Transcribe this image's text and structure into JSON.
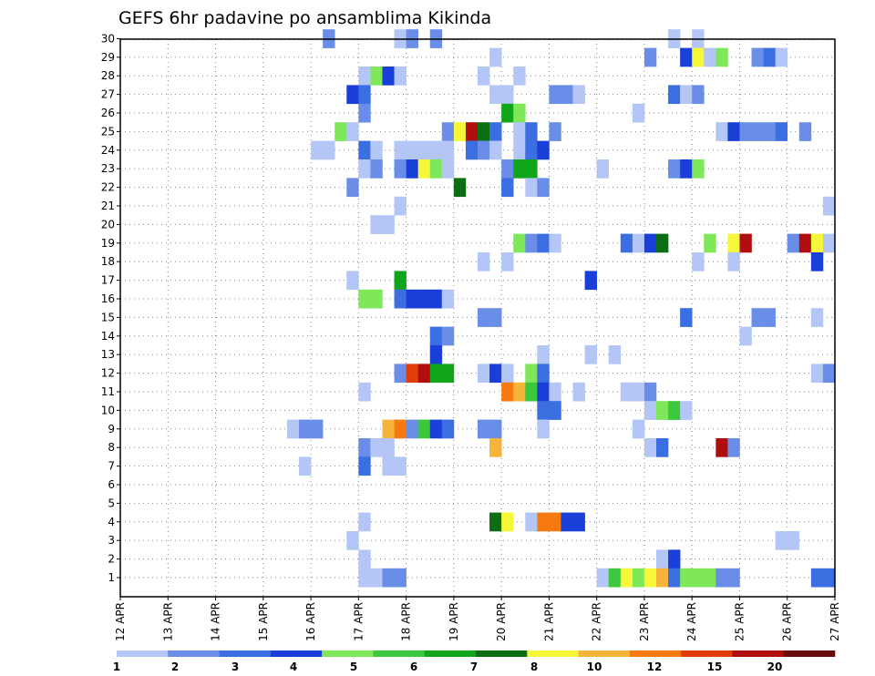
{
  "chart_data": {
    "type": "heatmap",
    "title": "GEFS 6hr padavine po ansamblima Kikinda",
    "x_labels": [
      "12 APR",
      "13 APR",
      "14 APR",
      "15 APR",
      "16 APR",
      "17 APR",
      "18 APR",
      "19 APR",
      "20 APR",
      "21 APR",
      "22 APR",
      "23 APR",
      "24 APR",
      "25 APR",
      "26 APR",
      "27 APR"
    ],
    "y_labels": [
      "1",
      "2",
      "3",
      "4",
      "5",
      "6",
      "7",
      "8",
      "9",
      "10",
      "11",
      "12",
      "13",
      "14",
      "15",
      "16",
      "17",
      "18",
      "19",
      "20",
      "21",
      "22",
      "23",
      "24",
      "25",
      "26",
      "27",
      "28",
      "29",
      "30"
    ],
    "steps_per_day": 4,
    "colorbar": {
      "labels": [
        "1",
        "2",
        "3",
        "4",
        "5",
        "6",
        "7",
        "8",
        "10",
        "12",
        "15",
        "20"
      ],
      "colors": [
        "#b3c6f5",
        "#6a8ee8",
        "#3b6ee0",
        "#1a3fd8",
        "#7fe85a",
        "#3cc83c",
        "#11a61a",
        "#0b6e12",
        "#f7f73a",
        "#f7b43a",
        "#f77a10",
        "#e03c0c",
        "#b00e0e",
        "#6a0a0a"
      ]
    },
    "cells": [
      [
        30,
        17,
        2
      ],
      [
        30,
        23,
        1
      ],
      [
        30,
        24,
        2
      ],
      [
        30,
        26,
        2
      ],
      [
        30,
        46,
        1
      ],
      [
        30,
        48,
        1
      ],
      [
        29,
        31,
        1
      ],
      [
        29,
        44,
        2
      ],
      [
        29,
        47,
        4
      ],
      [
        29,
        48,
        9
      ],
      [
        29,
        49,
        1
      ],
      [
        29,
        50,
        5
      ],
      [
        29,
        53,
        2
      ],
      [
        29,
        54,
        3
      ],
      [
        29,
        55,
        1
      ],
      [
        28,
        20,
        1
      ],
      [
        28,
        21,
        5
      ],
      [
        28,
        22,
        4
      ],
      [
        28,
        23,
        1
      ],
      [
        28,
        30,
        1
      ],
      [
        28,
        33,
        1
      ],
      [
        27,
        19,
        4
      ],
      [
        27,
        20,
        3
      ],
      [
        27,
        31,
        1
      ],
      [
        27,
        32,
        1
      ],
      [
        27,
        36,
        2
      ],
      [
        27,
        37,
        2
      ],
      [
        27,
        38,
        1
      ],
      [
        27,
        46,
        3
      ],
      [
        27,
        47,
        1
      ],
      [
        27,
        48,
        2
      ],
      [
        27,
        60,
        1
      ],
      [
        26,
        20,
        2
      ],
      [
        26,
        32,
        7
      ],
      [
        26,
        33,
        5
      ],
      [
        26,
        43,
        1
      ],
      [
        25,
        18,
        5
      ],
      [
        25,
        19,
        1
      ],
      [
        25,
        27,
        2
      ],
      [
        25,
        28,
        9
      ],
      [
        25,
        29,
        13
      ],
      [
        25,
        30,
        8
      ],
      [
        25,
        31,
        3
      ],
      [
        25,
        33,
        1
      ],
      [
        25,
        34,
        3
      ],
      [
        25,
        36,
        2
      ],
      [
        25,
        50,
        1
      ],
      [
        25,
        51,
        4
      ],
      [
        25,
        52,
        2
      ],
      [
        25,
        53,
        2
      ],
      [
        25,
        54,
        2
      ],
      [
        25,
        55,
        3
      ],
      [
        25,
        57,
        2
      ],
      [
        24,
        16,
        1
      ],
      [
        24,
        17,
        1
      ],
      [
        24,
        20,
        3
      ],
      [
        24,
        21,
        1
      ],
      [
        24,
        23,
        1
      ],
      [
        24,
        24,
        1
      ],
      [
        24,
        25,
        1
      ],
      [
        24,
        26,
        1
      ],
      [
        24,
        27,
        1
      ],
      [
        24,
        29,
        3
      ],
      [
        24,
        30,
        2
      ],
      [
        24,
        31,
        1
      ],
      [
        24,
        33,
        1
      ],
      [
        24,
        34,
        3
      ],
      [
        24,
        35,
        4
      ],
      [
        23,
        20,
        1
      ],
      [
        23,
        21,
        2
      ],
      [
        23,
        23,
        2
      ],
      [
        23,
        24,
        4
      ],
      [
        23,
        25,
        9
      ],
      [
        23,
        26,
        5
      ],
      [
        23,
        27,
        1
      ],
      [
        23,
        32,
        2
      ],
      [
        23,
        33,
        7
      ],
      [
        23,
        34,
        7
      ],
      [
        23,
        40,
        1
      ],
      [
        23,
        46,
        2
      ],
      [
        23,
        47,
        4
      ],
      [
        23,
        48,
        5
      ],
      [
        22,
        19,
        2
      ],
      [
        22,
        28,
        8
      ],
      [
        22,
        32,
        3
      ],
      [
        22,
        34,
        1
      ],
      [
        22,
        35,
        2
      ],
      [
        22,
        60,
        6
      ],
      [
        21,
        23,
        1
      ],
      [
        21,
        59,
        1
      ],
      [
        20,
        21,
        1
      ],
      [
        20,
        22,
        1
      ],
      [
        19,
        33,
        5
      ],
      [
        19,
        34,
        2
      ],
      [
        19,
        35,
        3
      ],
      [
        19,
        36,
        1
      ],
      [
        19,
        42,
        3
      ],
      [
        19,
        43,
        1
      ],
      [
        19,
        44,
        4
      ],
      [
        19,
        45,
        8
      ],
      [
        19,
        49,
        5
      ],
      [
        19,
        51,
        9
      ],
      [
        19,
        52,
        13
      ],
      [
        19,
        56,
        2
      ],
      [
        19,
        57,
        13
      ],
      [
        19,
        58,
        9
      ],
      [
        19,
        59,
        1
      ],
      [
        18,
        30,
        1
      ],
      [
        18,
        32,
        1
      ],
      [
        18,
        48,
        1
      ],
      [
        18,
        51,
        1
      ],
      [
        18,
        58,
        4
      ],
      [
        17,
        19,
        1
      ],
      [
        17,
        23,
        7
      ],
      [
        17,
        39,
        4
      ],
      [
        16,
        20,
        5
      ],
      [
        16,
        21,
        5
      ],
      [
        16,
        23,
        3
      ],
      [
        16,
        24,
        4
      ],
      [
        16,
        25,
        4
      ],
      [
        16,
        26,
        4
      ],
      [
        16,
        27,
        1
      ],
      [
        15,
        30,
        2
      ],
      [
        15,
        31,
        2
      ],
      [
        15,
        47,
        3
      ],
      [
        15,
        53,
        2
      ],
      [
        15,
        54,
        2
      ],
      [
        15,
        58,
        1
      ],
      [
        14,
        26,
        3
      ],
      [
        14,
        27,
        2
      ],
      [
        14,
        52,
        1
      ],
      [
        13,
        26,
        4
      ],
      [
        13,
        35,
        1
      ],
      [
        13,
        39,
        1
      ],
      [
        13,
        41,
        1
      ],
      [
        12,
        23,
        2
      ],
      [
        12,
        24,
        12
      ],
      [
        12,
        25,
        13
      ],
      [
        12,
        26,
        7
      ],
      [
        12,
        27,
        7
      ],
      [
        12,
        30,
        1
      ],
      [
        12,
        31,
        4
      ],
      [
        12,
        32,
        1
      ],
      [
        12,
        34,
        5
      ],
      [
        12,
        35,
        3
      ],
      [
        12,
        58,
        1
      ],
      [
        12,
        59,
        2
      ],
      [
        11,
        20,
        1
      ],
      [
        11,
        32,
        11
      ],
      [
        11,
        33,
        10
      ],
      [
        11,
        34,
        6
      ],
      [
        11,
        35,
        4
      ],
      [
        11,
        36,
        1
      ],
      [
        11,
        38,
        1
      ],
      [
        11,
        42,
        1
      ],
      [
        11,
        43,
        1
      ],
      [
        11,
        44,
        2
      ],
      [
        10,
        35,
        3
      ],
      [
        10,
        36,
        3
      ],
      [
        10,
        44,
        1
      ],
      [
        10,
        45,
        5
      ],
      [
        10,
        46,
        6
      ],
      [
        10,
        47,
        1
      ],
      [
        9,
        14,
        1
      ],
      [
        9,
        15,
        2
      ],
      [
        9,
        16,
        2
      ],
      [
        9,
        22,
        10
      ],
      [
        9,
        23,
        11
      ],
      [
        9,
        24,
        2
      ],
      [
        9,
        25,
        6
      ],
      [
        9,
        26,
        4
      ],
      [
        9,
        27,
        3
      ],
      [
        9,
        30,
        2
      ],
      [
        9,
        31,
        2
      ],
      [
        9,
        35,
        1
      ],
      [
        9,
        43,
        1
      ],
      [
        8,
        20,
        2
      ],
      [
        8,
        21,
        1
      ],
      [
        8,
        22,
        1
      ],
      [
        8,
        31,
        10
      ],
      [
        8,
        44,
        1
      ],
      [
        8,
        45,
        3
      ],
      [
        8,
        50,
        13
      ],
      [
        8,
        51,
        2
      ],
      [
        7,
        15,
        1
      ],
      [
        7,
        20,
        3
      ],
      [
        7,
        22,
        1
      ],
      [
        7,
        23,
        1
      ],
      [
        4,
        20,
        1
      ],
      [
        4,
        31,
        8
      ],
      [
        4,
        32,
        9
      ],
      [
        4,
        34,
        1
      ],
      [
        4,
        35,
        11
      ],
      [
        4,
        36,
        11
      ],
      [
        4,
        37,
        4
      ],
      [
        4,
        38,
        4
      ],
      [
        3,
        19,
        1
      ],
      [
        3,
        55,
        1
      ],
      [
        3,
        56,
        1
      ],
      [
        2,
        20,
        1
      ],
      [
        2,
        45,
        1
      ],
      [
        2,
        46,
        4
      ],
      [
        1,
        20,
        1
      ],
      [
        1,
        21,
        1
      ],
      [
        1,
        22,
        2
      ],
      [
        1,
        23,
        2
      ],
      [
        1,
        40,
        1
      ],
      [
        1,
        41,
        6
      ],
      [
        1,
        42,
        9
      ],
      [
        1,
        43,
        5
      ],
      [
        1,
        44,
        9
      ],
      [
        1,
        45,
        10
      ],
      [
        1,
        46,
        3
      ],
      [
        1,
        47,
        5
      ],
      [
        1,
        48,
        5
      ],
      [
        1,
        49,
        5
      ],
      [
        1,
        50,
        2
      ],
      [
        1,
        51,
        2
      ],
      [
        1,
        58,
        3
      ],
      [
        1,
        59,
        3
      ]
    ]
  }
}
